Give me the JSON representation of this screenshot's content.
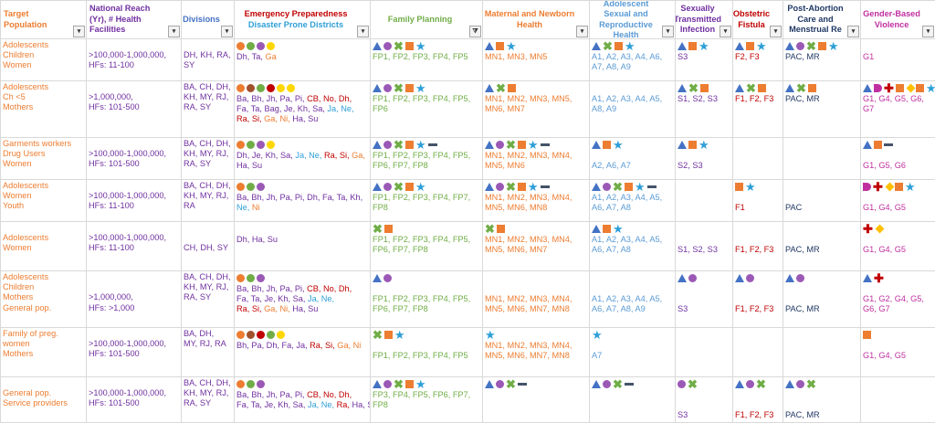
{
  "headers": {
    "target": "Target Population",
    "reach": "National Reach (Yr), # Health Facilities",
    "divisions": "Divisions",
    "emergency_1": "Emergency Preparedness",
    "emergency_2": "Disaster Prone Districts",
    "fp": "Family Planning",
    "mnh": "Maternal and Newborn Health",
    "asrh": "Adolescent Sexual and Reproductive Health",
    "sti": "Sexually Transmitted Infection",
    "fistula": "Obstetric Fistula",
    "pac": "Post-Abortion Care and Menstrual Re",
    "gbv": "Gender-Based Violence"
  },
  "filter_button": "▾",
  "colors": {
    "orange": "#ed7d31",
    "purple": "#7030a0",
    "green": "#70ad47",
    "blue": "#5b9bd5",
    "red": "#c00000",
    "navy": "#203864",
    "magenta": "#c02fa0"
  },
  "rows": [
    {
      "target": [
        "Adolescents",
        "Children",
        "Women"
      ],
      "reach": [
        "",
        ">100,000-1,000,000,",
        "HFs: 11-100"
      ],
      "divisions": [
        "",
        "DH, KH, RA,",
        "SY"
      ],
      "em_dots": [
        "#ed7d31",
        "#70ad47",
        "#9b59b6",
        "#ffd700"
      ],
      "districts": [
        {
          "t": "Dh, Ta, ",
          "c": "#7030a0"
        },
        {
          "t": "Ga",
          "c": "#ed7d31"
        }
      ],
      "fp_icons": [
        "triangle",
        "circle",
        "cross-mark",
        "square",
        "star"
      ],
      "fp": "FP1, FP2, FP3, FP4, FP5",
      "mnh_icons": [
        "triangle",
        "square",
        "star"
      ],
      "mnh": "MN1, MN3, MN5",
      "asrh_icons": [
        "triangle",
        "cross-mark",
        "square",
        "star"
      ],
      "asrh": [
        "A1, A2, A3, A4, A6,",
        "A7, A8, A9"
      ],
      "sti_icons": [
        "triangle",
        "square",
        "star"
      ],
      "sti": "S3",
      "fis_icons": [
        "triangle",
        "square",
        "star"
      ],
      "fis": "F2, F3",
      "pac_icons": [
        "triangle",
        "circle",
        "cross-mark",
        "square",
        "star"
      ],
      "pac": "PAC, MR",
      "gbv_icons": [],
      "gbv": "G1"
    },
    {
      "target": [
        "Adolescents",
        "Ch <5",
        "Mothers"
      ],
      "reach": [
        "",
        ">1,000,000,",
        "HFs: 101-500"
      ],
      "divisions": [
        "BA, CH, DH,",
        "KH, MY, RJ,",
        "RA, SY"
      ],
      "em_dots": [
        "#ed7d31",
        "#a0522d",
        "#70ad47",
        "#c00000",
        "#ffd700",
        "#ffd700"
      ],
      "districts": [
        {
          "t": "Ba, Bh, Jh, Pa, Pi, ",
          "c": "#7030a0"
        },
        {
          "t": "CB, No, Dh,",
          "c": "#c00000"
        },
        {
          "t": "|Fa, Ta, Bag, Je, Kh, Sa, ",
          "c": "#7030a0"
        },
        {
          "t": "Ja, Ne,",
          "c": "#2e9fd8"
        },
        {
          "t": "|Ra, Si, ",
          "c": "#c00000"
        },
        {
          "t": "Ga, Ni, ",
          "c": "#ed7d31"
        },
        {
          "t": "Ha, Su",
          "c": "#7030a0"
        }
      ],
      "fp_icons": [
        "triangle",
        "circle",
        "cross-mark",
        "square",
        "star"
      ],
      "fp": [
        "FP1, FP2, FP3, FP4, FP5,",
        "FP6"
      ],
      "mnh_icons": [
        "triangle",
        "cross-mark",
        "square"
      ],
      "mnh": [
        "MN1, MN2, MN3, MN5,",
        "MN6, MN7"
      ],
      "asrh_icons": [],
      "asrh": [
        "A1, A2, A3, A4, A5,",
        "A8, A9"
      ],
      "sti_icons": [
        "triangle",
        "cross-mark",
        "square"
      ],
      "sti": "S1, S2, S3",
      "fis_icons": [
        "triangle",
        "cross-mark",
        "square"
      ],
      "fis": "F1, F2, F3",
      "pac_icons": [
        "triangle",
        "cross-mark",
        "square"
      ],
      "pac": "PAC, MR",
      "gbv_icons": [
        "triangle",
        "half-circle",
        "cross",
        "square",
        "diamond",
        "square",
        "star"
      ],
      "gbv": [
        "G1, G4, G5, G6,",
        "G7"
      ]
    },
    {
      "target": [
        "Garments workers",
        "Drug Users",
        "Women"
      ],
      "reach": [
        "",
        ">100,000-1,000,000,",
        "HFs: 101-500"
      ],
      "divisions": [
        "BA, CH, DH,",
        "KH, MY, RJ,",
        "RA, SY"
      ],
      "em_dots": [
        "#ed7d31",
        "#70ad47",
        "#9b59b6",
        "#ffd700"
      ],
      "districts": [
        {
          "t": "Dh, Je, Kh, Sa, ",
          "c": "#7030a0"
        },
        {
          "t": "Ja, Ne, ",
          "c": "#2e9fd8"
        },
        {
          "t": "Ra, Si, ",
          "c": "#c00000"
        },
        {
          "t": "Ga,",
          "c": "#ed7d31"
        },
        {
          "t": "|Ha, Su",
          "c": "#7030a0"
        }
      ],
      "fp_icons": [
        "triangle",
        "circle",
        "cross-mark",
        "square",
        "star",
        "dash"
      ],
      "fp": [
        "FP1, FP2, FP3, FP4, FP5,",
        "FP6, FP7, FP8"
      ],
      "mnh_icons": [
        "triangle",
        "circle",
        "cross-mark",
        "square",
        "star",
        "dash"
      ],
      "mnh": [
        "MN1, MN2, MN3, MN4,",
        "MN5, MN6"
      ],
      "asrh_icons": [
        "triangle",
        "square",
        "star"
      ],
      "asrh": [
        "",
        "A2, A6, A7"
      ],
      "sti_icons": [
        "triangle",
        "square",
        "star"
      ],
      "sti": [
        "",
        "S2, S3"
      ],
      "fis_icons": [],
      "fis": "",
      "pac_icons": [],
      "pac": "",
      "gbv_icons": [
        "triangle",
        "square",
        "dash"
      ],
      "gbv": [
        "",
        "G1, G5, G6"
      ]
    },
    {
      "target": [
        "Adolescents",
        "Women",
        "Youth"
      ],
      "reach": [
        "",
        ">100,000-1,000,000,",
        "HFs: 11-100"
      ],
      "divisions": [
        "BA, CH, DH,",
        "KH, MY, RJ,",
        "RA"
      ],
      "em_dots": [
        "#ed7d31",
        "#70ad47",
        "#9b59b6"
      ],
      "districts": [
        {
          "t": "Ba, Bh, Jh, Pa, Pi, Dh, Fa, Ta, Kh,",
          "c": "#7030a0"
        },
        {
          "t": "|Ne, ",
          "c": "#2e9fd8"
        },
        {
          "t": "Ni",
          "c": "#ed7d31"
        }
      ],
      "fp_icons": [
        "triangle",
        "circle",
        "cross-mark",
        "square",
        "star"
      ],
      "fp": [
        "FP1, FP2, FP3, FP4, FP7,",
        "FP8"
      ],
      "mnh_icons": [
        "triangle",
        "circle",
        "cross-mark",
        "square",
        "star",
        "dash"
      ],
      "mnh": [
        "MN1, MN2, MN3, MN4,",
        "MN5, MN6, MN8"
      ],
      "asrh_icons": [
        "triangle",
        "circle",
        "cross-mark",
        "square",
        "star",
        "dash"
      ],
      "asrh": [
        "A1, A2, A3, A4, A5,",
        "A6, A7, A8"
      ],
      "sti_icons": [],
      "sti": "",
      "fis_icons": [
        "square",
        "star"
      ],
      "fis": [
        "",
        "F1"
      ],
      "pac_icons": [],
      "pac": [
        "",
        "PAC"
      ],
      "gbv_icons": [
        "half-circle",
        "cross",
        "diamond",
        "square",
        "star"
      ],
      "gbv": [
        "",
        "G1, G4, G5"
      ]
    },
    {
      "target": [
        "",
        "Adolescents",
        "Women"
      ],
      "reach": [
        "",
        ">100,000-1,000,000,",
        "HFs: 11-100"
      ],
      "divisions": [
        "",
        "",
        "CH, DH, SY"
      ],
      "em_dots": [],
      "districts": [
        {
          "t": "|Dh, Ha, Su",
          "c": "#7030a0"
        }
      ],
      "fp_icons": [
        "cross-mark",
        "square"
      ],
      "fp": [
        "FP1, FP2, FP3, FP4, FP5,",
        "FP6, FP7, FP8"
      ],
      "mnh_icons": [
        "cross-mark",
        "square"
      ],
      "mnh": [
        "MN1, MN2, MN3, MN4,",
        "MN5, MN6, MN7"
      ],
      "asrh_icons": [
        "triangle",
        "square",
        "star"
      ],
      "asrh": [
        "A1, A2, A3, A4, A5,",
        "A6, A7, A8"
      ],
      "sti_icons": [],
      "sti": [
        "",
        "S1, S2, S3"
      ],
      "fis_icons": [],
      "fis": [
        "",
        "F1, F2, F3"
      ],
      "pac_icons": [],
      "pac": [
        "",
        "PAC, MR"
      ],
      "gbv_icons": [
        "cross",
        "diamond"
      ],
      "gbv": [
        "",
        "G1, G4, G5"
      ]
    },
    {
      "target": [
        "Adolescents",
        "Children",
        "Mothers",
        "General pop."
      ],
      "reach": [
        "",
        "",
        ">1,000,000,",
        "HFs: >1,000"
      ],
      "divisions": [
        "BA, CH, DH,",
        "KH, MY, RJ,",
        "RA, SY"
      ],
      "em_dots": [
        "#ed7d31",
        "#70ad47",
        "#9b59b6"
      ],
      "districts": [
        {
          "t": "Ba, Bh, Jh, Pa, Pi, ",
          "c": "#7030a0"
        },
        {
          "t": "CB, No, Dh,",
          "c": "#c00000"
        },
        {
          "t": "|Fa, Ta, Je, Kh, Sa, ",
          "c": "#7030a0"
        },
        {
          "t": "Ja, Ne,",
          "c": "#2e9fd8"
        },
        {
          "t": "|Ra, Si, ",
          "c": "#c00000"
        },
        {
          "t": "Ga, Ni, ",
          "c": "#ed7d31"
        },
        {
          "t": "Ha, Su",
          "c": "#7030a0"
        }
      ],
      "fp_icons": [
        "triangle",
        "circle"
      ],
      "fp": [
        "",
        "FP1, FP2, FP3, FP4, FP5,",
        "FP6, FP7, FP8"
      ],
      "mnh_icons": [],
      "mnh": [
        "",
        "MN1, MN2, MN3, MN4,",
        "MN5, MN6, MN7, MN8"
      ],
      "asrh_icons": [],
      "asrh": [
        "",
        "A1, A2, A3, A4, A5,",
        "A6, A7, A8, A9"
      ],
      "sti_icons": [
        "triangle",
        "circle"
      ],
      "sti": [
        "",
        "",
        "S3"
      ],
      "fis_icons": [
        "triangle",
        "circle"
      ],
      "fis": [
        "",
        "",
        "F1, F2, F3"
      ],
      "pac_icons": [
        "triangle",
        "circle"
      ],
      "pac": [
        "",
        "",
        "PAC, MR"
      ],
      "gbv_icons": [
        "triangle",
        "cross"
      ],
      "gbv": [
        "",
        "G1, G2, G4, G5,",
        "G6, G7"
      ]
    },
    {
      "target": [
        "Family of preg.",
        "women",
        "Mothers"
      ],
      "reach": [
        "",
        ">100,000-1,000,000,",
        "HFs: 101-500"
      ],
      "divisions": [
        "BA, DH,",
        "MY, RJ, RA"
      ],
      "em_dots": [
        "#ed7d31",
        "#a0522d",
        "#c00000",
        "#70ad47",
        "#ffd700"
      ],
      "districts": [
        {
          "t": "|Bh, Pa, Dh, Fa, Ja, ",
          "c": "#7030a0"
        },
        {
          "t": "Ra, Si, ",
          "c": "#c00000"
        },
        {
          "t": "Ga, Ni",
          "c": "#ed7d31"
        }
      ],
      "fp_icons": [
        "cross-mark",
        "square",
        "star"
      ],
      "fp": [
        "",
        "FP1, FP2, FP3, FP4, FP5"
      ],
      "mnh_icons": [
        "star"
      ],
      "mnh": [
        "MN1, MN2, MN3, MN4,",
        "MN5, MN6, MN7, MN8"
      ],
      "asrh_icons": [
        "star"
      ],
      "asrh": [
        "",
        "A7"
      ],
      "sti_icons": [],
      "sti": "",
      "fis_icons": [],
      "fis": "",
      "pac_icons": [],
      "pac": "",
      "gbv_icons": [
        "square"
      ],
      "gbv": [
        "",
        "G1, G4, G5"
      ]
    },
    {
      "target": [
        "",
        "General pop.",
        "Service providers"
      ],
      "reach": [
        "",
        ">100,000-1,000,000,",
        "HFs: 101-500"
      ],
      "divisions": [
        "BA, CH, DH,",
        "KH, MY, RJ,",
        "RA, SY"
      ],
      "em_dots": [
        "#ed7d31",
        "#70ad47",
        "#9b59b6"
      ],
      "districts": [
        {
          "t": "Ba, Bh, Jh, Pa, Pi, ",
          "c": "#7030a0"
        },
        {
          "t": "CB, No, Dh,",
          "c": "#c00000"
        },
        {
          "t": "|Fa, Ta, Je, Kh, Sa, ",
          "c": "#7030a0"
        },
        {
          "t": "Ja, Ne, ",
          "c": "#2e9fd8"
        },
        {
          "t": "Ra, ",
          "c": "#c00000"
        },
        {
          "t": "Ha, Su",
          "c": "#7030a0"
        }
      ],
      "fp_icons": [
        "triangle",
        "circle",
        "cross-mark",
        "square",
        "star"
      ],
      "fp": [
        "FP3, FP4, FP5, FP6, FP7,",
        "FP8"
      ],
      "mnh_icons": [
        "triangle",
        "circle",
        "cross-mark",
        "dash"
      ],
      "mnh": [],
      "asrh_icons": [
        "triangle",
        "circle",
        "cross-mark",
        "dash"
      ],
      "asrh": [],
      "sti_icons": [
        "circle",
        "cross-mark"
      ],
      "sti": [
        "",
        "",
        "S3"
      ],
      "fis_icons": [
        "triangle",
        "circle",
        "cross-mark"
      ],
      "fis": [
        "",
        "",
        "F1, F2, F3"
      ],
      "pac_icons": [
        "triangle",
        "circle",
        "cross-mark"
      ],
      "pac": [
        "",
        "",
        "PAC, MR"
      ],
      "gbv_icons": [],
      "gbv": ""
    }
  ]
}
